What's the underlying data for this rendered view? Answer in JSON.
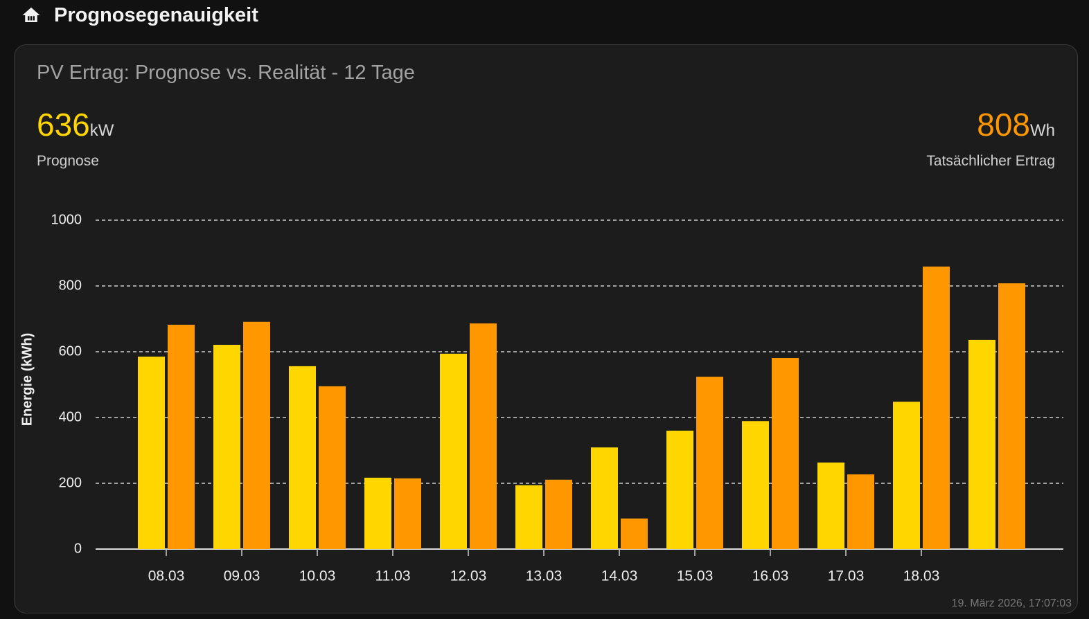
{
  "header": {
    "title": "Prognosegenauigkeit"
  },
  "card": {
    "title": "PV Ertrag: Prognose vs. Realität - 12 Tage",
    "stats": [
      {
        "value": 636,
        "unit": "kW"
      },
      {
        "value": 808,
        "unit": "Wh"
      }
    ],
    "timestamp": "19. März 2026, 17:07:03"
  },
  "chart_data": {
    "type": "bar",
    "y_label": "Energie (kWh)",
    "categories": [
      "08.03",
      "09.03",
      "10.03",
      "11.03",
      "12.03",
      "13.03",
      "14.03",
      "15.03",
      "16.03",
      "17.03",
      "18.03",
      null
    ],
    "series": [
      {
        "name": "Prognose",
        "color": "#FFD600",
        "values": [
          585,
          621,
          556,
          217,
          594,
          194,
          309,
          360,
          389,
          263,
          448,
          636
        ]
      },
      {
        "name": "Tatsächlicher Ertrag",
        "color": "#FF9800",
        "values": [
          682,
          691,
          495,
          215,
          686,
          211,
          93,
          524,
          581,
          227,
          859,
          808
        ]
      }
    ],
    "ylim": [
      0,
      1000
    ],
    "yticks": [
      0,
      200,
      400,
      600,
      800,
      1000
    ],
    "grid": true
  }
}
